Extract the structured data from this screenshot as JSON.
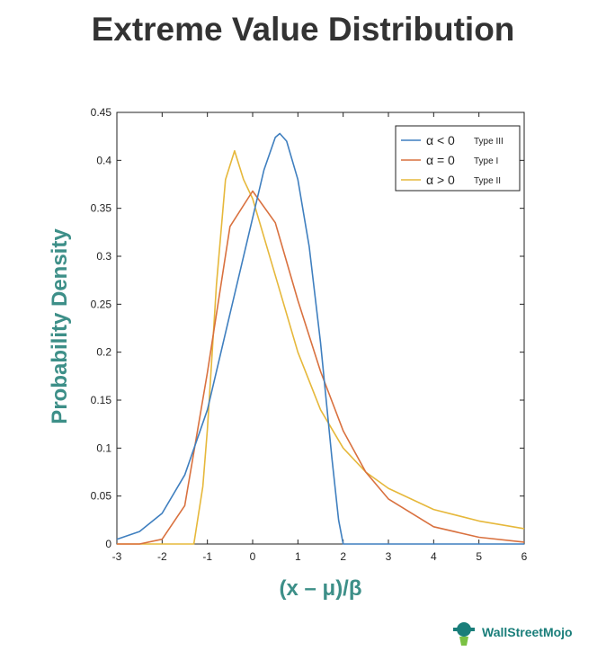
{
  "title": "Extreme Value Distribution",
  "brand": "WallStreetMojo",
  "chart_data": {
    "type": "line",
    "xlabel": "(x – μ)/β",
    "ylabel": "Probability Density",
    "xlim": [
      -3,
      6
    ],
    "ylim": [
      0,
      0.45
    ],
    "xticks": [
      -3,
      -2,
      -1,
      0,
      1,
      2,
      3,
      4,
      5,
      6
    ],
    "yticks": [
      0,
      0.05,
      0.1,
      0.15,
      0.2,
      0.25,
      0.3,
      0.35,
      0.4,
      0.45
    ],
    "legend_position": "top-right",
    "series": [
      {
        "name": "α < 0",
        "note": "Type III",
        "color": "#3f7fbf",
        "x": [
          -3,
          -2.5,
          -2,
          -1.5,
          -1,
          -0.5,
          0,
          0.25,
          0.5,
          0.6,
          0.75,
          1,
          1.25,
          1.5,
          1.75,
          1.9,
          2,
          2.5,
          3,
          4,
          5,
          6
        ],
        "y": [
          0.005,
          0.013,
          0.032,
          0.072,
          0.14,
          0.24,
          0.34,
          0.39,
          0.424,
          0.428,
          0.42,
          0.38,
          0.31,
          0.21,
          0.09,
          0.025,
          0,
          0,
          0,
          0,
          0,
          0
        ]
      },
      {
        "name": "α = 0",
        "note": "Type I",
        "color": "#d9713f",
        "x": [
          -3,
          -2.5,
          -2,
          -1.5,
          -1,
          -0.5,
          0,
          0.5,
          1,
          1.5,
          2,
          2.5,
          3,
          4,
          5,
          6
        ],
        "y": [
          0,
          0,
          0.005,
          0.04,
          0.179,
          0.331,
          0.368,
          0.335,
          0.254,
          0.18,
          0.118,
          0.075,
          0.047,
          0.018,
          0.007,
          0.002
        ]
      },
      {
        "name": "α > 0",
        "note": "Type II",
        "color": "#e6b83b",
        "x": [
          -3,
          -2,
          -1.5,
          -1.3,
          -1.1,
          -1,
          -0.8,
          -0.6,
          -0.4,
          -0.2,
          0,
          0.5,
          1,
          1.5,
          2,
          2.5,
          3,
          4,
          5,
          6
        ],
        "y": [
          0,
          0,
          0,
          0,
          0.06,
          0.12,
          0.27,
          0.38,
          0.41,
          0.38,
          0.36,
          0.28,
          0.2,
          0.14,
          0.1,
          0.075,
          0.058,
          0.036,
          0.024,
          0.016
        ]
      }
    ]
  }
}
